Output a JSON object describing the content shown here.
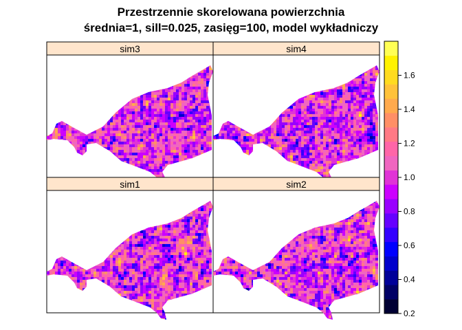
{
  "chart_data": {
    "type": "heatmap",
    "title_lines": [
      "Przestrzennie skorelowana powierzchnia",
      "średnia=1, sill=0.025, zasięg=100, model wykładniczy"
    ],
    "panels": [
      {
        "label": "sim3",
        "seed": 3
      },
      {
        "label": "sim4",
        "seed": 4
      },
      {
        "label": "sim1",
        "seed": 1
      },
      {
        "label": "sim2",
        "seed": 2
      }
    ],
    "value_range": [
      0.2,
      1.8
    ],
    "colorbar": {
      "min": 0.2,
      "max": 1.8,
      "ticks": [
        0.2,
        0.4,
        0.6,
        0.8,
        1.0,
        1.2,
        1.4,
        1.6
      ],
      "tick_labels": [
        "0.2",
        "0.4",
        "0.6",
        "0.8",
        "1.0",
        "1.2",
        "1.4",
        "1.6"
      ],
      "colors": [
        "#000033",
        "#000066",
        "#000099",
        "#0000CC",
        "#0000FF",
        "#3300FF",
        "#6600FF",
        "#9900FF",
        "#CC00FF",
        "#E033D6",
        "#F066C0",
        "#FF66A8",
        "#FF7A85",
        "#FF8F66",
        "#FFAA4D",
        "#FFC23A",
        "#FFDB20",
        "#FFF200",
        "#FFFF55"
      ]
    },
    "strip_color": "#FFE5CC"
  }
}
